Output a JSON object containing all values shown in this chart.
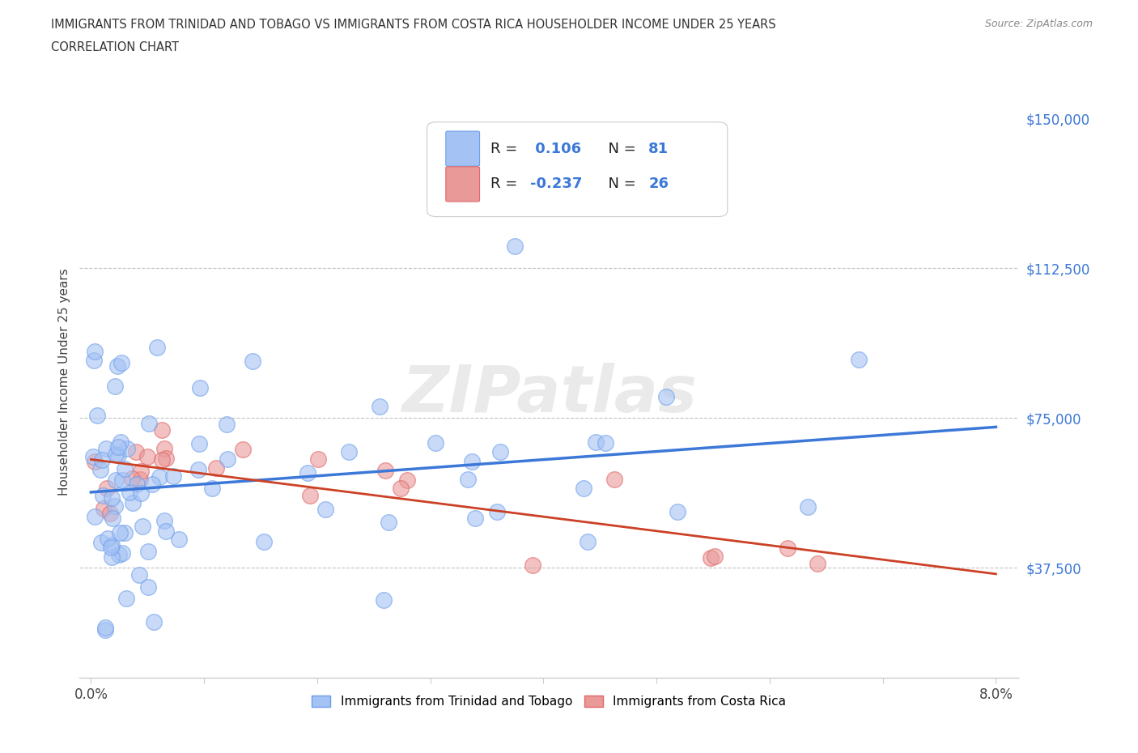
{
  "title_line1": "IMMIGRANTS FROM TRINIDAD AND TOBAGO VS IMMIGRANTS FROM COSTA RICA HOUSEHOLDER INCOME UNDER 25 YEARS",
  "title_line2": "CORRELATION CHART",
  "source_text": "Source: ZipAtlas.com",
  "ylabel": "Householder Income Under 25 years",
  "xlim": [
    -0.001,
    0.082
  ],
  "ylim": [
    10000,
    158000
  ],
  "color_blue_fill": "#a4c2f4",
  "color_blue_edge": "#6d9eeb",
  "color_blue_line": "#3c78d8",
  "color_pink_fill": "#ea9999",
  "color_pink_edge": "#e06666",
  "color_pink_line": "#cc4125",
  "watermark_color": "#cccccc",
  "legend1_label": "Immigrants from Trinidad and Tobago",
  "legend2_label": "Immigrants from Costa Rica",
  "ytick_positions": [
    37500,
    75000,
    112500,
    150000
  ],
  "ytick_labels": [
    "$37,500",
    "$75,000",
    "$112,500",
    "$150,000"
  ],
  "xtick_positions": [
    0.0,
    0.01,
    0.02,
    0.03,
    0.04,
    0.05,
    0.06,
    0.07,
    0.08
  ],
  "xtick_labels": [
    "0.0%",
    "",
    "",
    "",
    "",
    "",
    "",
    "",
    "8.0%"
  ]
}
